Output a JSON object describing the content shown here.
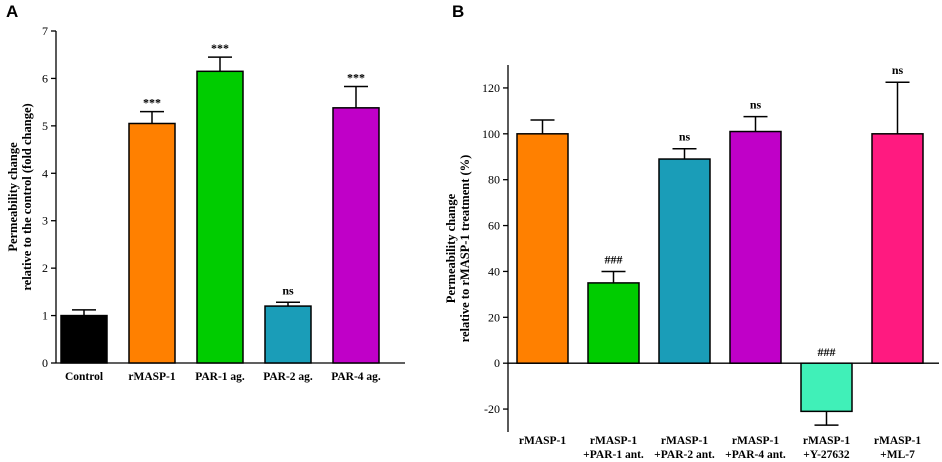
{
  "chart_data": [
    {
      "type": "bar",
      "panel_label": "A",
      "title": "",
      "xlabel": "",
      "ylabel_lines": [
        "Permeability change",
        "relative to the control (fold change)"
      ],
      "ylim": [
        0,
        7
      ],
      "yticks": [
        0,
        1,
        2,
        3,
        4,
        5,
        6,
        7
      ],
      "ytick_labels": [
        "0",
        "1",
        "2",
        "3",
        "4",
        "5",
        "6",
        "7"
      ],
      "categories": [
        {
          "lines": [
            "Control"
          ]
        },
        {
          "lines": [
            "rMASP-1"
          ]
        },
        {
          "lines": [
            "PAR-1 ag."
          ]
        },
        {
          "lines": [
            "PAR-2 ag."
          ]
        },
        {
          "lines": [
            "PAR-4 ag."
          ]
        }
      ],
      "values": [
        1.0,
        5.05,
        6.15,
        1.2,
        5.38
      ],
      "errors": [
        0.12,
        0.25,
        0.3,
        0.08,
        0.45
      ],
      "annotations": [
        "",
        "***",
        "***",
        "ns",
        "***"
      ],
      "colors": [
        "#000000",
        "#ff8000",
        "#00cc00",
        "#1a9db8",
        "#c000c8"
      ]
    },
    {
      "type": "bar",
      "panel_label": "B",
      "title": "",
      "xlabel": "",
      "ylabel_lines": [
        "Permeability change",
        "relative to rMASP-1 treatment (%)"
      ],
      "ylim": [
        -30,
        130
      ],
      "yticks": [
        -20,
        0,
        20,
        40,
        60,
        80,
        100,
        120
      ],
      "ytick_labels": [
        "-20",
        "0",
        "20",
        "40",
        "60",
        "80",
        "100",
        "120"
      ],
      "categories": [
        {
          "lines": [
            "rMASP-1"
          ]
        },
        {
          "lines": [
            "rMASP-1",
            "+PAR-1 ant."
          ]
        },
        {
          "lines": [
            "rMASP-1",
            "+PAR-2 ant."
          ]
        },
        {
          "lines": [
            "rMASP-1",
            "+PAR-4 ant."
          ]
        },
        {
          "lines": [
            "rMASP-1",
            "+Y-27632"
          ]
        },
        {
          "lines": [
            "rMASP-1",
            "+ML-7"
          ]
        }
      ],
      "values": [
        100,
        35,
        89,
        101,
        -21,
        100
      ],
      "errors": [
        6,
        5,
        4.5,
        6.5,
        6,
        22.5
      ],
      "annotations": [
        "",
        "###",
        "ns",
        "ns",
        "###",
        "ns"
      ],
      "colors": [
        "#ff8000",
        "#00cc00",
        "#1a9db8",
        "#c000c8",
        "#40f0b8",
        "#ff1a80"
      ]
    }
  ]
}
